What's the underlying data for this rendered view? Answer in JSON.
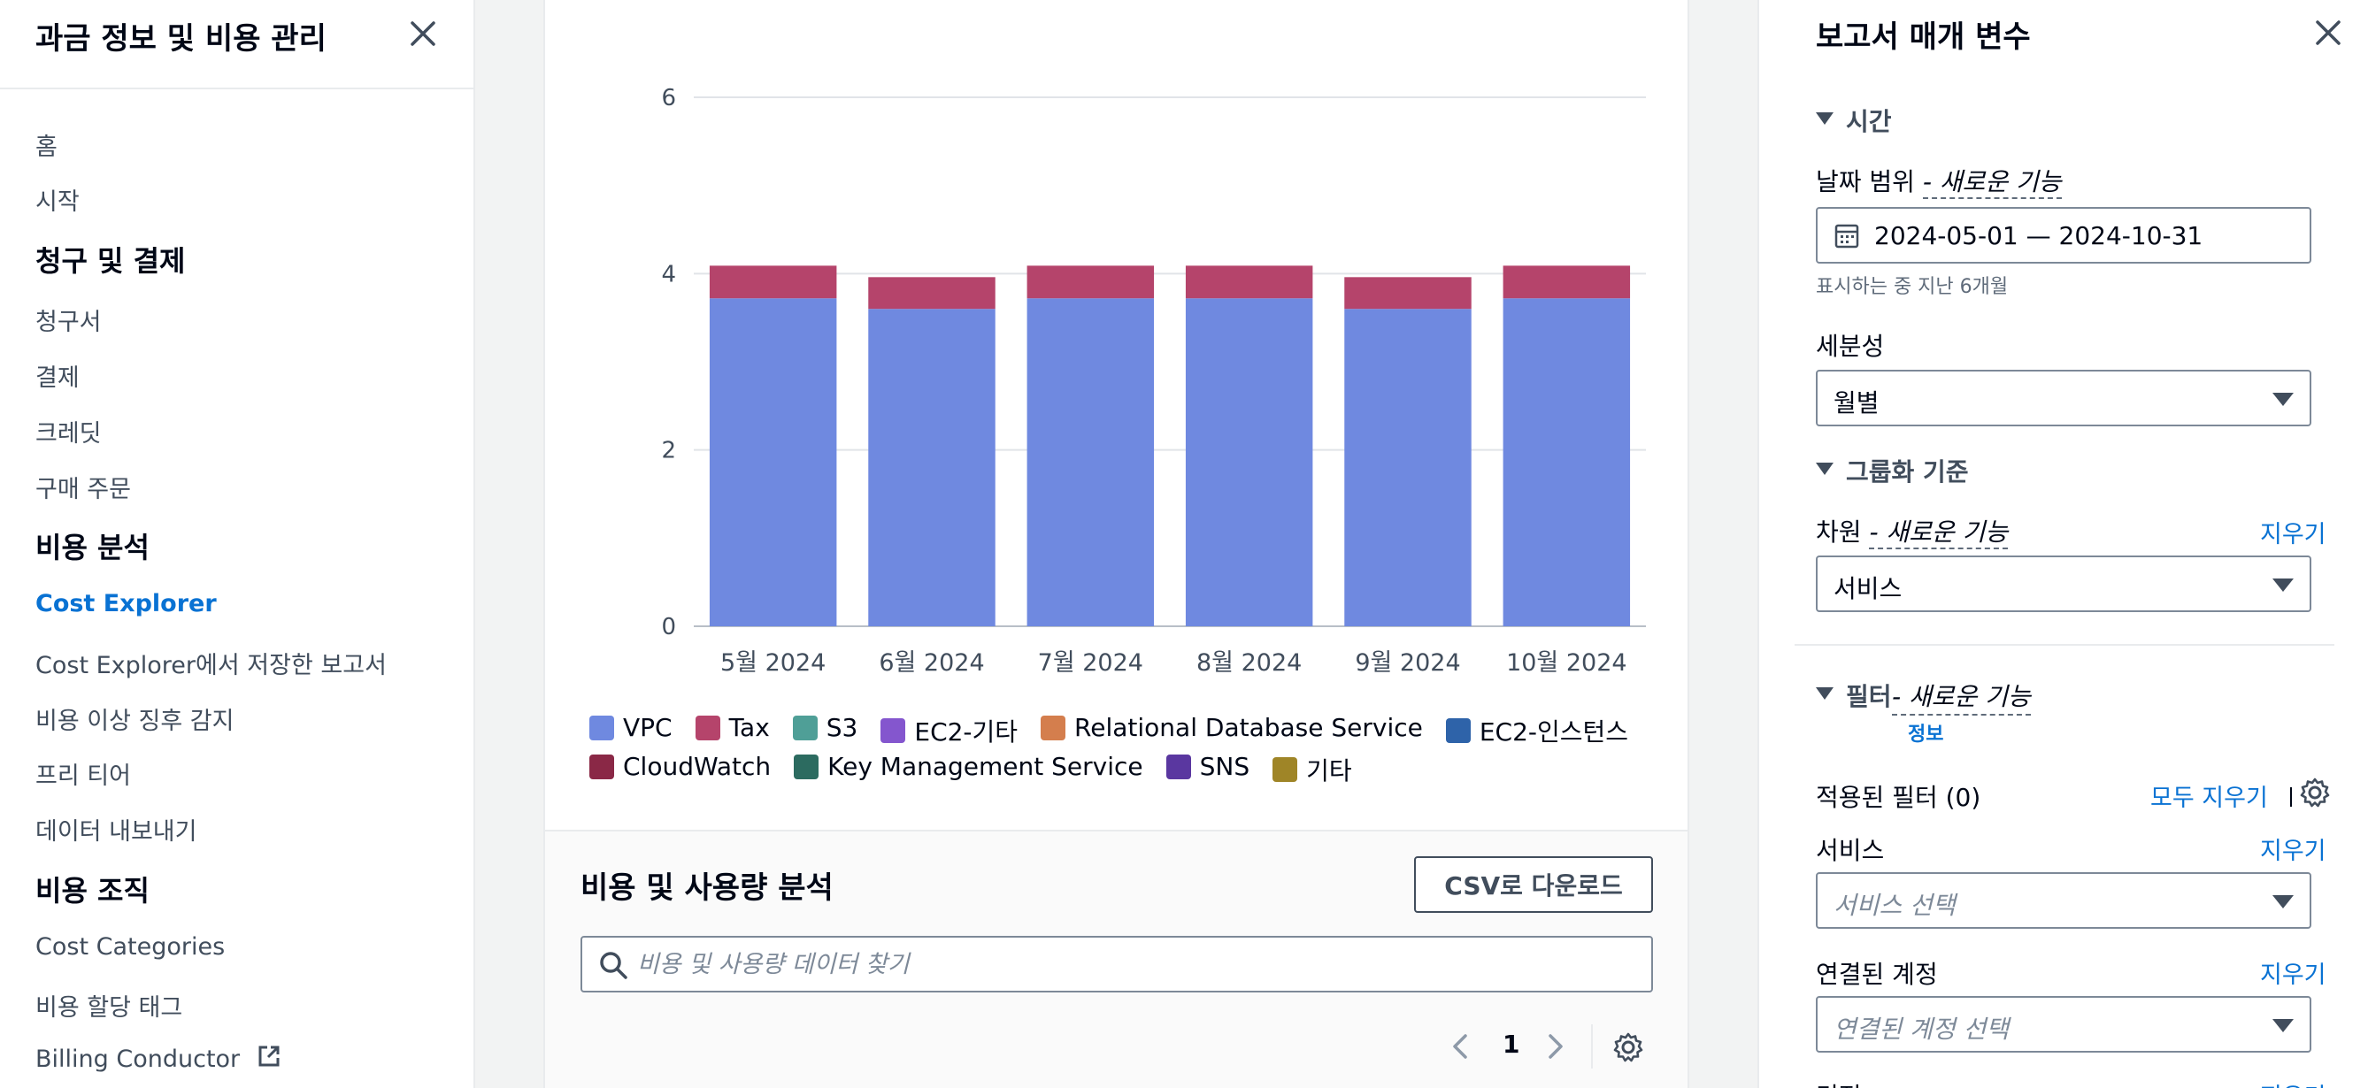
{
  "nav": {
    "title": "과금 정보 및 비용 관리",
    "items": {
      "home": "홈",
      "getting_started": "시작",
      "billing_section": "청구 및 결제",
      "bills": "청구서",
      "payments": "결제",
      "credits": "크레딧",
      "purchase_orders": "구매 주문",
      "cost_analysis_section": "비용 분석",
      "cost_explorer": "Cost Explorer",
      "saved_reports": "Cost Explorer에서 저장한 보고서",
      "anomaly_detection": "비용 이상 징후 감지",
      "free_tier": "프리 티어",
      "data_exports": "데이터 내보내기",
      "cost_org_section": "비용 조직",
      "cost_categories": "Cost Categories",
      "cost_allocation_tags": "비용 할당 태그",
      "billing_conductor": "Billing Conductor"
    }
  },
  "chart_data": {
    "type": "bar",
    "stacked": true,
    "categories": [
      "5월 2024",
      "6월 2024",
      "7월 2024",
      "8월 2024",
      "9월 2024",
      "10월 2024"
    ],
    "series": [
      {
        "name": "VPC",
        "color": "#6f89e0",
        "values": [
          3.72,
          3.6,
          3.72,
          3.72,
          3.6,
          3.72
        ]
      },
      {
        "name": "Tax",
        "color": "#b5446b",
        "values": [
          0.37,
          0.36,
          0.37,
          0.37,
          0.36,
          0.37
        ]
      }
    ],
    "yticks": [
      0,
      2,
      4,
      6
    ],
    "ylim": [
      0,
      6
    ],
    "grid": true,
    "legend_position": "bottom",
    "legend": [
      {
        "name": "VPC",
        "color": "#6f89e0"
      },
      {
        "name": "Tax",
        "color": "#b5446b"
      },
      {
        "name": "S3",
        "color": "#4f9f97"
      },
      {
        "name": "EC2-기타",
        "color": "#8456ce"
      },
      {
        "name": "Relational Database Service",
        "color": "#d47e4d"
      },
      {
        "name": "EC2-인스턴스",
        "color": "#2e63a9"
      },
      {
        "name": "CloudWatch",
        "color": "#8a2846"
      },
      {
        "name": "Key Management Service",
        "color": "#2c6b60"
      },
      {
        "name": "SNS",
        "color": "#5a37a0"
      },
      {
        "name": "기타",
        "color": "#9f8527"
      }
    ]
  },
  "analysis": {
    "title": "비용 및 사용량 분석",
    "csv_button": "CSV로 다운로드",
    "search_placeholder": "비용 및 사용량 데이터 찾기",
    "page": "1"
  },
  "params": {
    "title": "보고서 매개 변수",
    "time_section": "시간",
    "date_range_label": "날짜 범위",
    "new_feature": "- 새로운 기능",
    "date_range_value": "2024-05-01 — 2024-10-31",
    "date_hint": "표시하는 중 지난 6개월",
    "granularity_label": "세분성",
    "granularity_value": "월별",
    "group_by_section": "그룹화 기준",
    "dimension_label": "차원",
    "clear": "지우기",
    "dimension_value": "서비스",
    "filters_section": "필터",
    "info_link": "정보",
    "applied_filters": "적용된 필터 (0)",
    "clear_all": "모두 지우기",
    "service_label": "서비스",
    "service_placeholder": "서비스 선택",
    "linked_account_label": "연결된 계정",
    "linked_account_placeholder": "연결된 계정 선택",
    "region_label": "리전"
  }
}
